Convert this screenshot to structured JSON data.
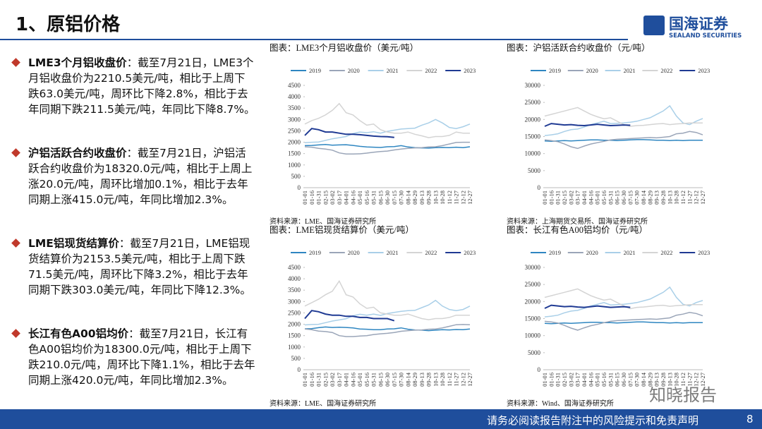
{
  "header": {
    "title": "1、原铝价格",
    "logo": "国海证券",
    "logo_sub": "SEALAND SECURITIES"
  },
  "bullets": [
    {
      "label": "LME3个月铝收盘价",
      "text": "：截至7月21日，LME3个月铝收盘价为2210.5美元/吨，相比于上周下跌63.0美元/吨，周环比下降2.8%，相比于去年同期下跌211.5美元/吨，年同比下降8.7%。"
    },
    {
      "label": "沪铝活跃合约收盘价",
      "text": "：截至7月21日，沪铝活跃合约收盘价为18320.0元/吨，相比于上周上涨20.0元/吨，周环比增加0.1%，相比于去年同期上涨415.0元/吨，年同比增加2.3%。"
    },
    {
      "label": "LME铝现货结算价",
      "text": "：截至7月21日，LME铝现货结算价为2153.5美元/吨，相比于上周下跌71.5美元/吨，周环比下降3.2%，相比于去年同期下跌303.0美元/吨，年同比下降12.3%。"
    },
    {
      "label": "长江有色A00铝均价",
      "text": "：截至7月21日，长江有色A00铝均价为18300.0元/吨，相比于上周下跌210.0元/吨，周环比下降1.1%，相比于去年同期上涨420.0元/吨，年同比增加2.3%。"
    }
  ],
  "chart_data": [
    {
      "type": "line",
      "title": "图表：LME3个月铝收盘价（美元/吨）",
      "source": "资料来源：LME、国海证券研究所",
      "categories": [
        "01-01",
        "01-16",
        "01-31",
        "02-15",
        "03-02",
        "03-17",
        "04-01",
        "04-16",
        "05-01",
        "05-16",
        "05-31",
        "06-15",
        "06-30",
        "07-15",
        "07-30",
        "08-14",
        "08-29",
        "09-13",
        "09-28",
        "10-13",
        "10-28",
        "11-12",
        "11-27",
        "12-12",
        "12-27"
      ],
      "ylim": [
        0,
        4500
      ],
      "yticks": [
        0,
        500,
        1000,
        1500,
        2000,
        2500,
        3000,
        3500,
        4000,
        4500
      ],
      "series": [
        {
          "name": "2019",
          "color": "#2e86c1",
          "values": [
            1850,
            1860,
            1880,
            1900,
            1870,
            1880,
            1890,
            1860,
            1820,
            1790,
            1780,
            1770,
            1800,
            1810,
            1850,
            1790,
            1760,
            1750,
            1740,
            1760,
            1770,
            1760,
            1780,
            1760,
            1800
          ]
        },
        {
          "name": "2020",
          "color": "#9aa5b8",
          "values": [
            1800,
            1780,
            1730,
            1700,
            1650,
            1530,
            1480,
            1480,
            1490,
            1520,
            1560,
            1590,
            1610,
            1660,
            1700,
            1730,
            1750,
            1760,
            1790,
            1800,
            1850,
            1920,
            1990,
            2000,
            2000
          ]
        },
        {
          "name": "2021",
          "color": "#a9cfe8",
          "values": [
            1980,
            2000,
            2010,
            2080,
            2150,
            2200,
            2250,
            2380,
            2450,
            2420,
            2460,
            2400,
            2480,
            2530,
            2580,
            2600,
            2620,
            2750,
            2850,
            3000,
            2850,
            2650,
            2600,
            2680,
            2800
          ]
        },
        {
          "name": "2022",
          "color": "#d4d4d4",
          "values": [
            2800,
            2950,
            3050,
            3200,
            3400,
            3700,
            3300,
            3200,
            2950,
            2750,
            2800,
            2550,
            2450,
            2400,
            2400,
            2450,
            2350,
            2280,
            2200,
            2250,
            2250,
            2300,
            2450,
            2400,
            2400
          ]
        },
        {
          "name": "2023",
          "color": "#1f3a93",
          "values": [
            2300,
            2600,
            2550,
            2450,
            2450,
            2400,
            2350,
            2350,
            2330,
            2300,
            2270,
            2250,
            2240,
            2210.5,
            null,
            null,
            null,
            null,
            null,
            null,
            null,
            null,
            null,
            null,
            null
          ]
        }
      ]
    },
    {
      "type": "line",
      "title": "图表：沪铝活跃合约收盘价（元/吨）",
      "source": "资料来源：上海期货交易所、国海证券研究所",
      "categories": [
        "01-01",
        "01-16",
        "01-31",
        "02-15",
        "03-02",
        "03-17",
        "04-01",
        "04-16",
        "05-01",
        "05-16",
        "05-31",
        "06-15",
        "06-30",
        "07-15",
        "07-30",
        "08-14",
        "08-29",
        "09-13",
        "09-28",
        "10-13",
        "10-28",
        "11-12",
        "11-27",
        "12-12",
        "12-27"
      ],
      "ylim": [
        0,
        30000
      ],
      "yticks": [
        0,
        5000,
        10000,
        15000,
        20000,
        25000,
        30000
      ],
      "series": [
        {
          "name": "2019",
          "color": "#2e86c1",
          "values": [
            13700,
            13600,
            13700,
            13800,
            13700,
            13800,
            13900,
            14000,
            14000,
            13900,
            13900,
            13800,
            13900,
            14000,
            14100,
            14100,
            14000,
            13900,
            13900,
            13800,
            13900,
            13800,
            13900,
            13900,
            13900
          ]
        },
        {
          "name": "2020",
          "color": "#9aa5b8",
          "values": [
            14000,
            13800,
            13500,
            12800,
            12000,
            11500,
            12200,
            12800,
            13200,
            13600,
            14000,
            14200,
            14300,
            14400,
            14500,
            14600,
            14700,
            14600,
            14800,
            15000,
            15800,
            16000,
            16500,
            16200,
            15500
          ]
        },
        {
          "name": "2021",
          "color": "#a9cfe8",
          "values": [
            15300,
            15500,
            15800,
            16500,
            17000,
            17200,
            17800,
            18500,
            19000,
            19500,
            18800,
            18900,
            19000,
            19200,
            19500,
            20000,
            20500,
            21500,
            22500,
            24000,
            21000,
            19000,
            18500,
            19500,
            20300
          ]
        },
        {
          "name": "2022",
          "color": "#d4d4d4",
          "values": [
            21000,
            21500,
            22000,
            22500,
            23000,
            23500,
            22500,
            21500,
            20800,
            20200,
            20500,
            19500,
            18500,
            18000,
            18200,
            18300,
            18500,
            18700,
            18800,
            18500,
            18700,
            18800,
            19000,
            19000,
            19000
          ]
        },
        {
          "name": "2023",
          "color": "#1f3a93",
          "values": [
            18000,
            18800,
            18600,
            18400,
            18500,
            18300,
            18200,
            18400,
            18600,
            18400,
            18200,
            18300,
            18400,
            18320,
            null,
            null,
            null,
            null,
            null,
            null,
            null,
            null,
            null,
            null,
            null
          ]
        }
      ]
    },
    {
      "type": "line",
      "title": "图表：LME铝现货结算价（美元/吨）",
      "source": "资料来源：LME、国海证券研究所",
      "categories": [
        "01-01",
        "01-16",
        "01-31",
        "02-15",
        "03-02",
        "03-17",
        "04-01",
        "04-16",
        "05-01",
        "05-16",
        "05-31",
        "06-15",
        "06-30",
        "07-15",
        "07-30",
        "08-14",
        "08-29",
        "09-13",
        "09-28",
        "10-13",
        "10-28",
        "11-12",
        "11-27",
        "12-12",
        "12-27"
      ],
      "ylim": [
        0,
        4500
      ],
      "yticks": [
        0,
        500,
        1000,
        1500,
        2000,
        2500,
        3000,
        3500,
        4000,
        4500
      ],
      "series": [
        {
          "name": "2019",
          "color": "#2e86c1",
          "values": [
            1800,
            1810,
            1850,
            1880,
            1860,
            1870,
            1860,
            1840,
            1790,
            1780,
            1760,
            1760,
            1790,
            1800,
            1840,
            1780,
            1750,
            1740,
            1720,
            1740,
            1760,
            1750,
            1770,
            1760,
            1790
          ]
        },
        {
          "name": "2020",
          "color": "#9aa5b8",
          "values": [
            1790,
            1760,
            1700,
            1680,
            1640,
            1500,
            1460,
            1460,
            1480,
            1500,
            1550,
            1580,
            1600,
            1640,
            1690,
            1720,
            1740,
            1750,
            1780,
            1790,
            1840,
            1910,
            1980,
            1990,
            1980
          ]
        },
        {
          "name": "2021",
          "color": "#a9cfe8",
          "values": [
            1970,
            1990,
            2000,
            2070,
            2140,
            2190,
            2240,
            2370,
            2440,
            2400,
            2450,
            2390,
            2470,
            2520,
            2570,
            2600,
            2610,
            2730,
            2850,
            3050,
            2800,
            2650,
            2600,
            2650,
            2800
          ]
        },
        {
          "name": "2022",
          "color": "#d4d4d4",
          "values": [
            2800,
            2950,
            3100,
            3300,
            3450,
            3900,
            3300,
            3200,
            2900,
            2700,
            2750,
            2500,
            2450,
            2400,
            2400,
            2450,
            2350,
            2250,
            2200,
            2250,
            2250,
            2300,
            2400,
            2400,
            2400
          ]
        },
        {
          "name": "2023",
          "color": "#1f3a93",
          "values": [
            2250,
            2600,
            2550,
            2450,
            2400,
            2400,
            2350,
            2350,
            2300,
            2300,
            2250,
            2250,
            2250,
            2153.5,
            null,
            null,
            null,
            null,
            null,
            null,
            null,
            null,
            null,
            null,
            null
          ]
        }
      ]
    },
    {
      "type": "line",
      "title": "图表：长江有色A00铝均价（元/吨）",
      "source": "资料来源：Wind、国海证券研究所",
      "categories": [
        "01-01",
        "01-16",
        "01-31",
        "02-15",
        "03-02",
        "03-17",
        "04-01",
        "04-16",
        "05-01",
        "05-16",
        "05-31",
        "06-15",
        "06-30",
        "07-15",
        "07-30",
        "08-14",
        "08-29",
        "09-13",
        "09-28",
        "10-13",
        "10-28",
        "11-12",
        "11-27",
        "12-12",
        "12-27"
      ],
      "ylim": [
        0,
        30000
      ],
      "yticks": [
        0,
        5000,
        10000,
        15000,
        20000,
        25000,
        30000
      ],
      "series": [
        {
          "name": "2019",
          "color": "#2e86c1",
          "values": [
            13600,
            13500,
            13600,
            13700,
            13600,
            13700,
            13800,
            13900,
            13900,
            13800,
            13800,
            13700,
            13800,
            13900,
            14000,
            14000,
            13900,
            13800,
            13800,
            13700,
            13800,
            13700,
            13800,
            13800,
            13800
          ]
        },
        {
          "name": "2020",
          "color": "#9aa5b8",
          "values": [
            14200,
            14000,
            13700,
            13000,
            12200,
            11600,
            12300,
            12900,
            13300,
            13800,
            14200,
            14400,
            14500,
            14600,
            14700,
            14800,
            14900,
            14800,
            15000,
            15200,
            16000,
            16300,
            16800,
            16500,
            15800
          ]
        },
        {
          "name": "2021",
          "color": "#a9cfe8",
          "values": [
            15500,
            15700,
            16000,
            16700,
            17200,
            17400,
            18000,
            18700,
            19200,
            19700,
            19000,
            19100,
            19200,
            19400,
            19700,
            20200,
            20700,
            21700,
            22700,
            24200,
            21200,
            19200,
            18700,
            19700,
            20300
          ]
        },
        {
          "name": "2022",
          "color": "#d4d4d4",
          "values": [
            21200,
            21700,
            22200,
            22700,
            23200,
            23700,
            22700,
            21700,
            21000,
            20400,
            20700,
            19700,
            18700,
            17900,
            18300,
            18400,
            18600,
            18800,
            18900,
            18600,
            18800,
            18900,
            19100,
            19100,
            19100
          ]
        },
        {
          "name": "2023",
          "color": "#1f3a93",
          "values": [
            18000,
            18900,
            18700,
            18500,
            18600,
            18400,
            18300,
            18500,
            18700,
            18500,
            18300,
            18400,
            18500,
            18300,
            null,
            null,
            null,
            null,
            null,
            null,
            null,
            null,
            null,
            null,
            null
          ]
        }
      ]
    }
  ],
  "footer": {
    "disclaimer": "请务必阅读报告附注中的风险提示和免责声明",
    "page": "8",
    "watermark": "知晓报告"
  }
}
